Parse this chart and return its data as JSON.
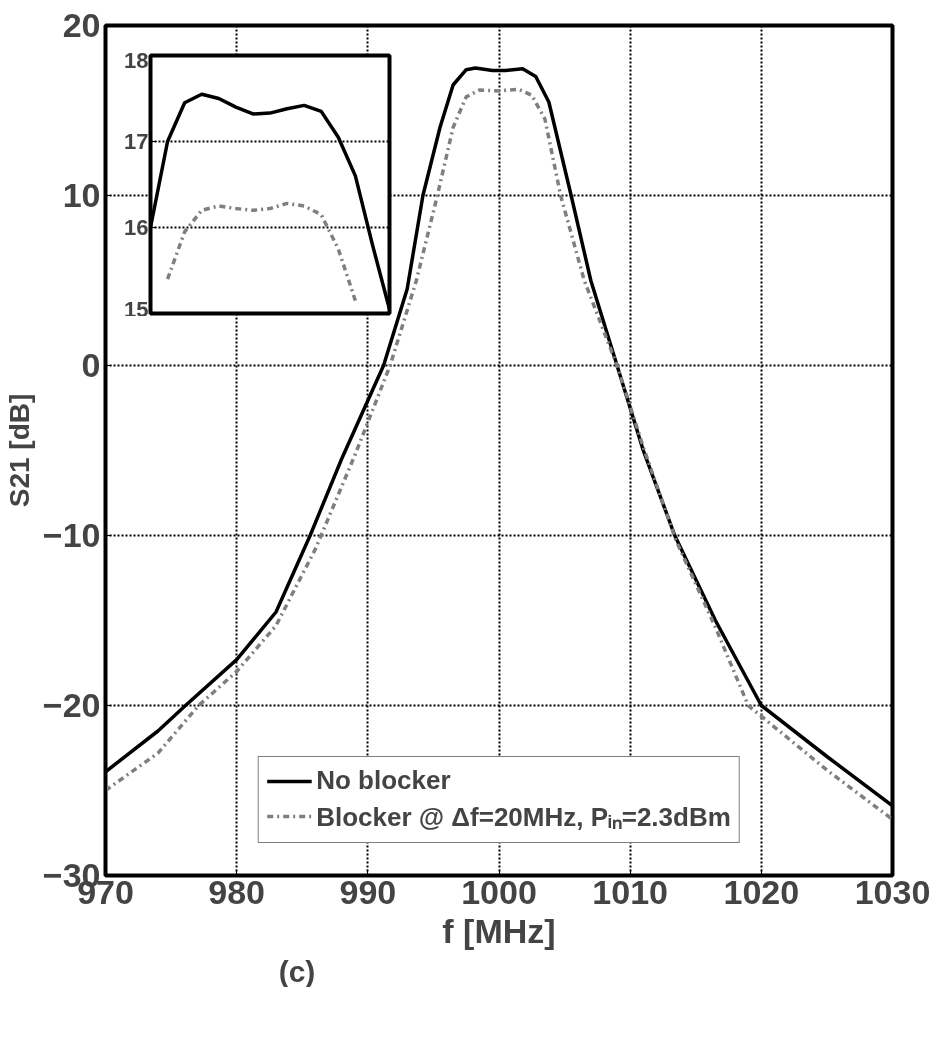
{
  "chart_data": [
    {
      "type": "line",
      "xlabel": "f [MHz]",
      "ylabel": "S21 [dB]",
      "xlim": [
        970,
        1030
      ],
      "ylim": [
        -30,
        20
      ],
      "xticks": [
        970,
        980,
        990,
        1000,
        1010,
        1020,
        1030
      ],
      "yticks": [
        -30,
        -20,
        -10,
        0,
        10,
        20
      ],
      "grid": true,
      "legend": "bottom",
      "annotations": [
        "(c)"
      ],
      "series": [
        {
          "name": "No blocker",
          "color": "#000000",
          "line_style": "solid",
          "x": [
            970,
            974,
            976.1,
            980,
            983,
            985.6,
            988,
            991.2,
            993,
            994.2,
            995.5,
            996.5,
            997.5,
            998.2,
            999.5,
            1000.5,
            1001.8,
            1002.8,
            1003.8,
            1005.5,
            1007,
            1009,
            1011,
            1013.4,
            1016.5,
            1020,
            1025,
            1030
          ],
          "values": [
            -23.9,
            -21.5,
            -20,
            -17.3,
            -14.5,
            -10,
            -5.5,
            0,
            4.5,
            10,
            14,
            16.5,
            17.4,
            17.5,
            17.35,
            17.35,
            17.45,
            17.0,
            15.5,
            10,
            5,
            0,
            -5,
            -10,
            -15,
            -20,
            -23,
            -25.9
          ]
        },
        {
          "name": "Blocker @ Δf=20MHz, Pᵢₙ=2.3dBm",
          "color": "#7f7f7f",
          "line_style": "dashed",
          "x": [
            970,
            974,
            977.1,
            980,
            983,
            986,
            989,
            991.7,
            993.7,
            995.3,
            996.5,
            997.5,
            998.5,
            1000,
            1001.5,
            1002.5,
            1003.5,
            1004.7,
            1006.5,
            1009,
            1011,
            1013.5,
            1016.5,
            1019,
            1025,
            1030
          ],
          "values": [
            -25.0,
            -22.8,
            -20,
            -18,
            -15.3,
            -10.8,
            -5.3,
            0,
            5,
            10,
            14,
            15.8,
            16.2,
            16.15,
            16.25,
            15.9,
            14.5,
            10,
            5,
            0,
            -4.8,
            -10.3,
            -15.4,
            -20,
            -23.8,
            -26.7
          ]
        }
      ]
    },
    {
      "type": "line",
      "categories": [
        null,
        null,
        null,
        null,
        null,
        null,
        null,
        null,
        null,
        null,
        null,
        null,
        null,
        null,
        null
      ],
      "ylim": [
        15,
        18
      ],
      "yticks": [
        15,
        16,
        17,
        18
      ],
      "grid": "y",
      "tick_labels": "y",
      "series": [
        {
          "color": "#000000",
          "line_style": "solid",
          "values": [
            16.0,
            17.0,
            17.45,
            17.55,
            17.5,
            17.4,
            17.32,
            17.33,
            17.38,
            17.42,
            17.35,
            17.05,
            16.6,
            15.8,
            15.05
          ]
        },
        {
          "color": "#7f7f7f",
          "line_style": "dashed",
          "values": [
            null,
            15.4,
            15.95,
            16.2,
            16.25,
            16.22,
            16.2,
            16.22,
            16.28,
            16.25,
            16.15,
            15.75,
            15.15,
            null,
            null
          ]
        }
      ]
    }
  ]
}
